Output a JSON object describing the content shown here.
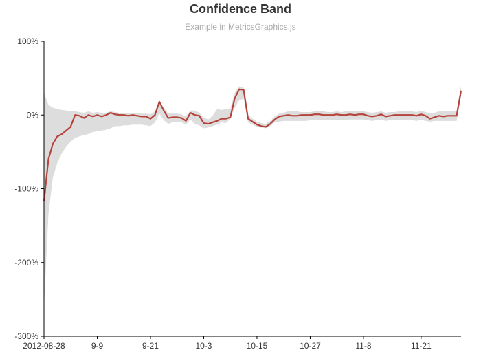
{
  "chart_data": {
    "type": "line",
    "title": "Confidence Band",
    "subtitle": "Example in MetricsGraphics.js",
    "y_format": "percent",
    "ylim": [
      -3.0,
      1.0
    ],
    "xlim": [
      "2012-08-28",
      "2012-11-30"
    ],
    "y_ticks": [
      1.0,
      0.0,
      -1.0,
      -2.0,
      -3.0
    ],
    "y_tick_labels": [
      "100%",
      "0%",
      "-100%",
      "-200%",
      "-300%"
    ],
    "x_ticks": [
      "2012-08-28",
      "2012-09-09",
      "2012-09-21",
      "2012-10-03",
      "2012-10-15",
      "2012-10-27",
      "2012-11-08",
      "2012-11-21"
    ],
    "x_tick_labels": [
      "2012-08-28",
      "9-9",
      "9-21",
      "10-3",
      "10-15",
      "10-27",
      "11-8",
      "11-21"
    ],
    "grid": false,
    "colors": {
      "line": "#b6433b",
      "band": "#dddddd",
      "axis": "#000000"
    },
    "series": [
      {
        "x": [
          "2012-08-28",
          "2012-08-29",
          "2012-08-30",
          "2012-08-31",
          "2012-09-01",
          "2012-09-02",
          "2012-09-03",
          "2012-09-04",
          "2012-09-05",
          "2012-09-06",
          "2012-09-07",
          "2012-09-08",
          "2012-09-09",
          "2012-09-10",
          "2012-09-11",
          "2012-09-12",
          "2012-09-13",
          "2012-09-14",
          "2012-09-15",
          "2012-09-16",
          "2012-09-17",
          "2012-09-18",
          "2012-09-19",
          "2012-09-20",
          "2012-09-21",
          "2012-09-22",
          "2012-09-23",
          "2012-09-24",
          "2012-09-25",
          "2012-09-26",
          "2012-09-27",
          "2012-09-28",
          "2012-09-29",
          "2012-09-30",
          "2012-10-01",
          "2012-10-02",
          "2012-10-03",
          "2012-10-04",
          "2012-10-05",
          "2012-10-06",
          "2012-10-07",
          "2012-10-08",
          "2012-10-09",
          "2012-10-10",
          "2012-10-11",
          "2012-10-12",
          "2012-10-13",
          "2012-10-14",
          "2012-10-15",
          "2012-10-16",
          "2012-10-17",
          "2012-10-18",
          "2012-10-19",
          "2012-10-20",
          "2012-10-21",
          "2012-10-22",
          "2012-10-23",
          "2012-10-24",
          "2012-10-25",
          "2012-10-26",
          "2012-10-27",
          "2012-10-28",
          "2012-10-29",
          "2012-10-30",
          "2012-10-31",
          "2012-11-01",
          "2012-11-02",
          "2012-11-03",
          "2012-11-04",
          "2012-11-05",
          "2012-11-06",
          "2012-11-07",
          "2012-11-08",
          "2012-11-09",
          "2012-11-10",
          "2012-11-11",
          "2012-11-12",
          "2012-11-13",
          "2012-11-14",
          "2012-11-15",
          "2012-11-16",
          "2012-11-17",
          "2012-11-18",
          "2012-11-19",
          "2012-11-20",
          "2012-11-21",
          "2012-11-22",
          "2012-11-23",
          "2012-11-24",
          "2012-11-25",
          "2012-11-26",
          "2012-11-27",
          "2012-11-28",
          "2012-11-29",
          "2012-11-30"
        ],
        "values": [
          -1.17,
          -0.6,
          -0.39,
          -0.29,
          -0.26,
          -0.21,
          -0.16,
          0.0,
          -0.01,
          -0.04,
          0.0,
          -0.02,
          0.0,
          -0.02,
          0.0,
          0.03,
          0.01,
          0.0,
          0.0,
          -0.01,
          0.0,
          -0.01,
          -0.02,
          -0.02,
          -0.05,
          0.0,
          0.18,
          0.06,
          -0.04,
          -0.03,
          -0.03,
          -0.04,
          -0.08,
          0.03,
          0.0,
          -0.01,
          -0.11,
          -0.12,
          -0.1,
          -0.08,
          -0.05,
          -0.05,
          -0.03,
          0.23,
          0.35,
          0.34,
          -0.05,
          -0.09,
          -0.13,
          -0.15,
          -0.16,
          -0.12,
          -0.06,
          -0.02,
          -0.01,
          0.0,
          -0.01,
          -0.01,
          0.0,
          0.0,
          0.0,
          0.01,
          0.01,
          0.0,
          0.0,
          0.0,
          0.01,
          0.0,
          0.0,
          0.01,
          0.0,
          0.01,
          0.01,
          -0.01,
          -0.02,
          -0.01,
          0.01,
          -0.02,
          -0.01,
          0.0,
          0.0,
          0.0,
          0.0,
          0.0,
          -0.01,
          0.01,
          -0.01,
          -0.05,
          -0.03,
          -0.01,
          -0.02,
          -0.01,
          -0.01,
          -0.01,
          0.33
        ],
        "lower": [
          -2.6,
          -1.35,
          -0.85,
          -0.65,
          -0.52,
          -0.43,
          -0.36,
          -0.31,
          -0.29,
          -0.27,
          -0.26,
          -0.23,
          -0.22,
          -0.21,
          -0.2,
          -0.18,
          -0.15,
          -0.15,
          -0.14,
          -0.14,
          -0.13,
          -0.13,
          -0.13,
          -0.14,
          -0.15,
          -0.1,
          0.02,
          -0.07,
          -0.12,
          -0.1,
          -0.09,
          -0.1,
          -0.13,
          -0.06,
          -0.12,
          -0.14,
          -0.18,
          -0.17,
          -0.15,
          -0.13,
          -0.1,
          -0.11,
          -0.05,
          0.1,
          0.2,
          0.22,
          -0.1,
          -0.13,
          -0.16,
          -0.17,
          -0.18,
          -0.15,
          -0.1,
          -0.09,
          -0.08,
          -0.08,
          -0.08,
          -0.08,
          -0.08,
          -0.08,
          -0.07,
          -0.07,
          -0.07,
          -0.07,
          -0.07,
          -0.07,
          -0.07,
          -0.07,
          -0.07,
          -0.06,
          -0.06,
          -0.06,
          -0.06,
          -0.07,
          -0.08,
          -0.07,
          -0.06,
          -0.08,
          -0.07,
          -0.07,
          -0.07,
          -0.07,
          -0.07,
          -0.07,
          -0.08,
          -0.06,
          -0.08,
          -0.09,
          -0.08,
          -0.08,
          -0.08,
          -0.08,
          -0.08,
          -0.08,
          0.25
        ],
        "upper": [
          0.3,
          0.14,
          0.1,
          0.08,
          0.07,
          0.06,
          0.05,
          0.05,
          0.04,
          0.03,
          0.05,
          0.03,
          0.04,
          0.03,
          0.03,
          0.05,
          0.04,
          0.03,
          0.03,
          0.02,
          0.03,
          0.02,
          0.02,
          0.02,
          0.01,
          0.05,
          0.2,
          0.1,
          0.02,
          0.02,
          0.02,
          0.01,
          -0.02,
          0.06,
          0.06,
          0.03,
          -0.03,
          -0.06,
          -0.01,
          0.08,
          0.07,
          0.08,
          0.09,
          0.3,
          0.39,
          0.37,
          0.0,
          -0.05,
          -0.09,
          -0.11,
          -0.12,
          -0.08,
          -0.02,
          0.02,
          0.03,
          0.05,
          0.05,
          0.05,
          0.04,
          0.04,
          0.04,
          0.05,
          0.05,
          0.05,
          0.04,
          0.04,
          0.05,
          0.04,
          0.05,
          0.05,
          0.05,
          0.05,
          0.05,
          0.04,
          0.03,
          0.04,
          0.05,
          0.03,
          0.04,
          0.04,
          0.05,
          0.05,
          0.05,
          0.05,
          0.04,
          0.06,
          0.04,
          0.02,
          0.03,
          0.05,
          0.05,
          0.05,
          0.05,
          0.05,
          0.4
        ]
      }
    ]
  }
}
